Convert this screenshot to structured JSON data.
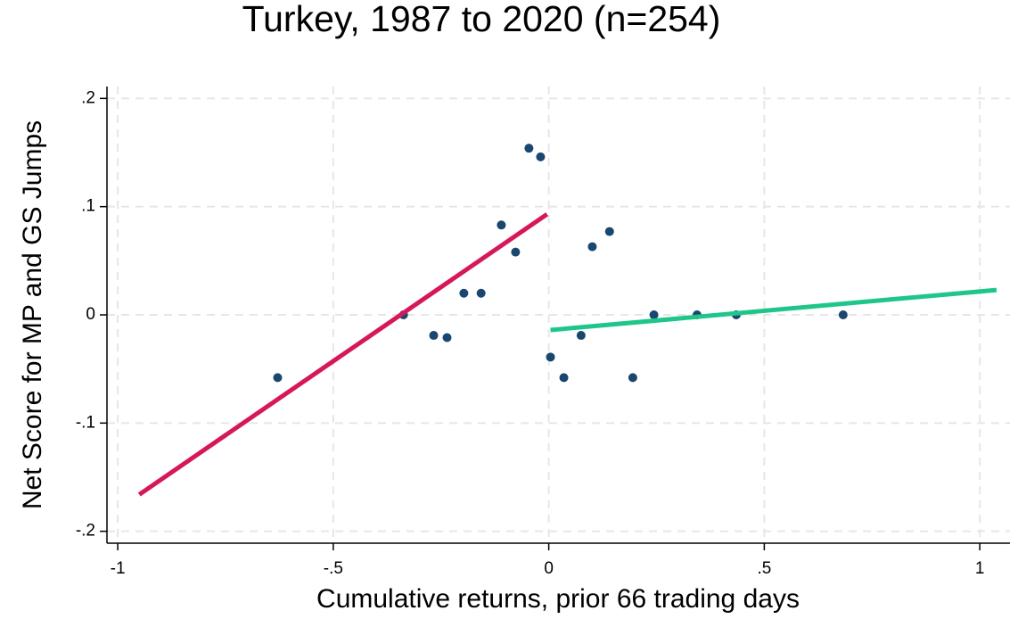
{
  "chart_data": {
    "type": "scatter",
    "title": "Turkey, 1987 to 2020 (n=254)",
    "x_label": "Cumulative returns, prior 66 trading days",
    "y_label": "Net Score for MP and GS Jumps",
    "xlim": [
      -1.025,
      1.07
    ],
    "ylim": [
      -0.211,
      0.211
    ],
    "xticks": [
      -1,
      {
        "value": -0.5,
        "label": "-.5"
      },
      0,
      {
        "value": 0.5,
        "label": ".5"
      },
      1
    ],
    "yticks": [
      {
        "value": -0.2,
        "label": "-.2"
      },
      {
        "value": -0.1,
        "label": "-.1"
      },
      0,
      {
        "value": 0.1,
        "label": ".1"
      },
      {
        "value": 0.2,
        "label": ".2"
      }
    ],
    "grid": true,
    "series": [
      {
        "type": "scatter",
        "color": "#1a476f",
        "x": [
          -0.629,
          -0.337,
          -0.267,
          -0.236,
          -0.197,
          -0.157,
          -0.11,
          -0.077,
          -0.046,
          -0.019,
          0.004,
          0.035,
          0.075,
          0.101,
          0.141,
          0.195,
          0.244,
          0.344,
          0.435,
          0.683
        ],
        "values": [
          -0.058,
          0,
          -0.019,
          -0.021,
          0.02,
          0.02,
          0.083,
          0.058,
          0.154,
          0.146,
          -0.039,
          -0.058,
          -0.019,
          0.063,
          0.077,
          -0.058,
          0,
          0,
          0,
          0
        ]
      },
      {
        "type": "line",
        "color": "#d6185a",
        "x": [
          -0.95,
          -0.004
        ],
        "values": [
          -0.166,
          0.093
        ]
      },
      {
        "type": "line",
        "color": "#1fc68a",
        "x": [
          0.004,
          1.039
        ],
        "values": [
          -0.014,
          0.023
        ]
      }
    ]
  }
}
